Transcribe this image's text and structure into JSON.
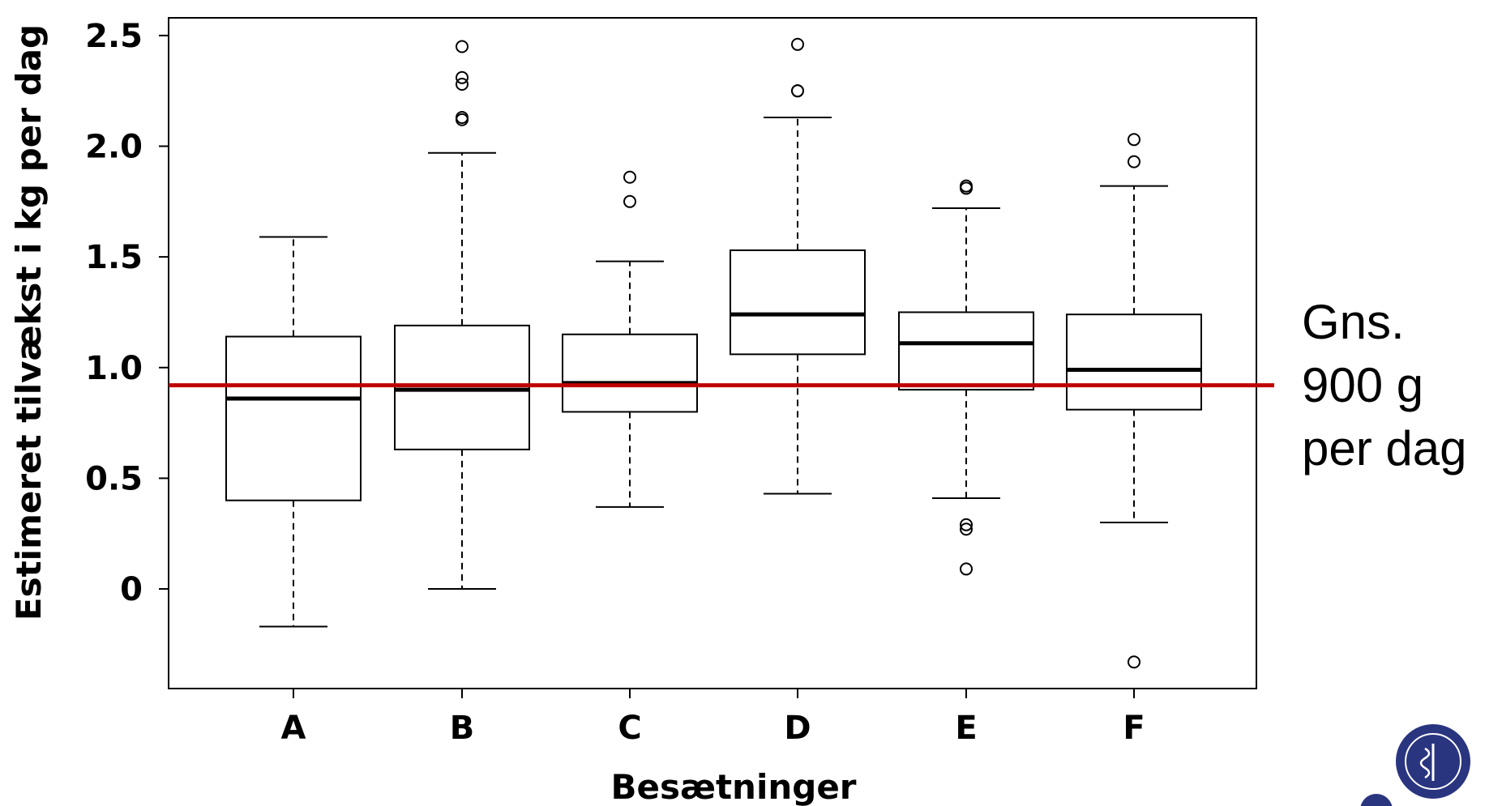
{
  "chart_data": {
    "type": "boxplot",
    "title": "",
    "xlabel": "Besætninger",
    "ylabel": "Estimeret tilvækst i kg per dag",
    "ylim": [
      -0.45,
      2.58
    ],
    "yticks": [
      0,
      0.5,
      1.0,
      1.5,
      2.0,
      2.5
    ],
    "ytick_labels": [
      "0",
      "0.5",
      "1.0",
      "1.5",
      "2.0",
      "2.5"
    ],
    "grid": false,
    "categories": [
      "A",
      "B",
      "C",
      "D",
      "E",
      "F"
    ],
    "boxes": [
      {
        "name": "A",
        "whisker_low": -0.17,
        "q1": 0.4,
        "median": 0.86,
        "q3": 1.14,
        "whisker_high": 1.59,
        "outliers": []
      },
      {
        "name": "B",
        "whisker_low": 0.0,
        "q1": 0.63,
        "median": 0.9,
        "q3": 1.19,
        "whisker_high": 1.97,
        "outliers": [
          2.12,
          2.13,
          2.28,
          2.31,
          2.45
        ]
      },
      {
        "name": "C",
        "whisker_low": 0.37,
        "q1": 0.8,
        "median": 0.93,
        "q3": 1.15,
        "whisker_high": 1.48,
        "outliers": [
          1.75,
          1.86
        ]
      },
      {
        "name": "D",
        "whisker_low": 0.43,
        "q1": 1.06,
        "median": 1.24,
        "q3": 1.53,
        "whisker_high": 2.13,
        "outliers": [
          2.25,
          2.25,
          2.46
        ]
      },
      {
        "name": "E",
        "whisker_low": 0.41,
        "q1": 0.9,
        "median": 1.11,
        "q3": 1.25,
        "whisker_high": 1.72,
        "outliers": [
          0.09,
          0.27,
          0.29,
          1.81,
          1.82
        ]
      },
      {
        "name": "F",
        "whisker_low": 0.3,
        "q1": 0.81,
        "median": 0.99,
        "q3": 1.24,
        "whisker_high": 1.82,
        "outliers": [
          -0.33,
          1.93,
          2.03
        ]
      }
    ],
    "reference_line": {
      "value": 0.92,
      "color": "#c00000"
    },
    "annotation": [
      "Gns.",
      "900 g",
      "per dag"
    ]
  },
  "colors": {
    "box": "#000000",
    "reference": "#c00000",
    "seal": "#2a3580"
  },
  "logo": {
    "icon": "university-seal-icon",
    "text": "MEDICÆ · SIGILLVM · FACVLTATIS"
  }
}
